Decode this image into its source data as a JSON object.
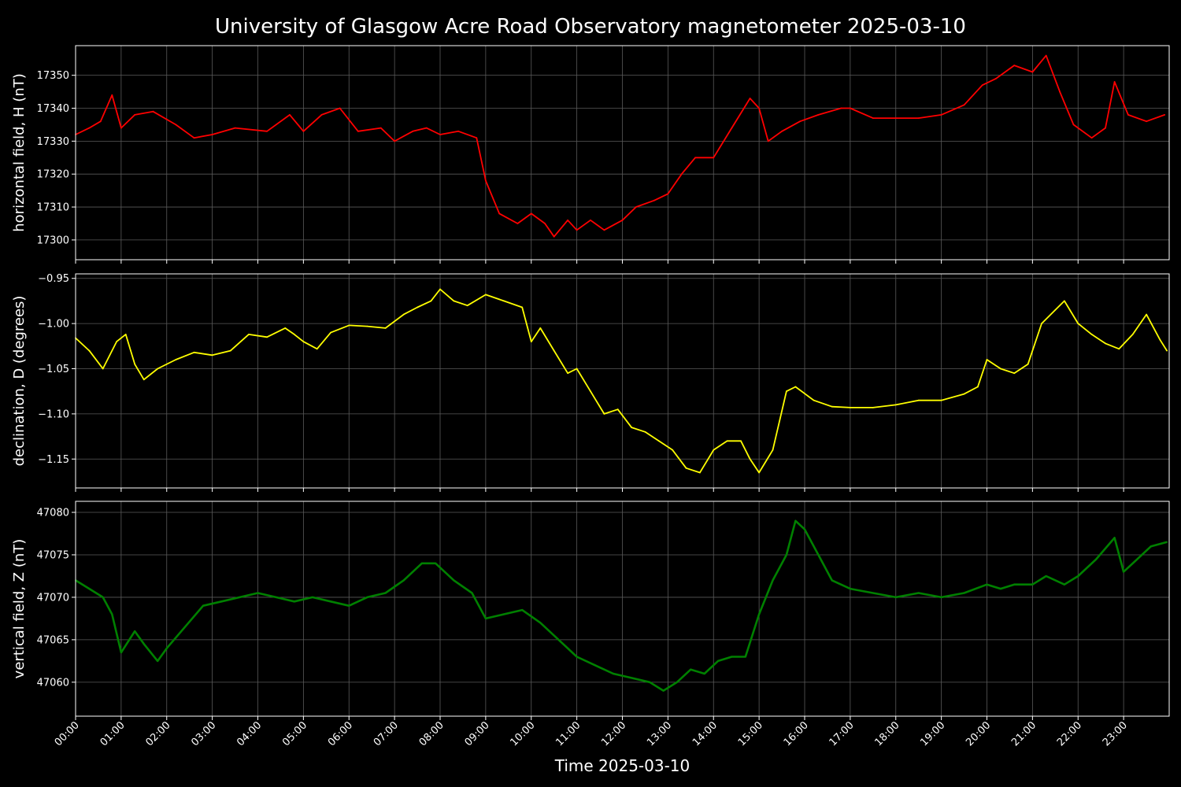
{
  "title": "University of Glasgow Acre Road Observatory magnetometer 2025-03-10",
  "chart_data": [
    {
      "type": "line",
      "ylabel": "horizontal field, H (nT)",
      "xlabel": "",
      "color": "#ff0000",
      "ylim": [
        17294,
        17359
      ],
      "yticks": [
        17300,
        17310,
        17320,
        17330,
        17340,
        17350
      ],
      "ytick_labels": [
        "17300",
        "17310",
        "17320",
        "17330",
        "17340",
        "17350"
      ],
      "grid": true,
      "x_hours": [
        0.0,
        0.3,
        0.55,
        0.8,
        1.0,
        1.3,
        1.7,
        2.2,
        2.6,
        3.0,
        3.5,
        4.2,
        4.7,
        5.0,
        5.4,
        5.8,
        6.2,
        6.7,
        7.0,
        7.4,
        7.7,
        8.0,
        8.4,
        8.8,
        9.0,
        9.3,
        9.7,
        10.0,
        10.3,
        10.5,
        10.8,
        11.0,
        11.3,
        11.6,
        12.0,
        12.3,
        12.7,
        13.0,
        13.3,
        13.6,
        14.0,
        14.4,
        14.8,
        15.0,
        15.2,
        15.5,
        15.9,
        16.3,
        16.8,
        17.0,
        17.5,
        18.0,
        18.5,
        19.0,
        19.5,
        19.9,
        20.2,
        20.6,
        21.0,
        21.3,
        21.6,
        21.9,
        22.3,
        22.6,
        22.8,
        23.1,
        23.5,
        23.9
      ],
      "values": [
        17332,
        17334,
        17336,
        17344,
        17334,
        17338,
        17339,
        17335,
        17331,
        17332,
        17334,
        17333,
        17338,
        17333,
        17338,
        17340,
        17333,
        17334,
        17330,
        17333,
        17334,
        17332,
        17333,
        17331,
        17318,
        17308,
        17305,
        17308,
        17305,
        17301,
        17306,
        17303,
        17306,
        17303,
        17306,
        17310,
        17312,
        17314,
        17320,
        17325,
        17325,
        17334,
        17343,
        17340,
        17330,
        17333,
        17336,
        17338,
        17340,
        17340,
        17337,
        17337,
        17337,
        17338,
        17341,
        17347,
        17349,
        17353,
        17351,
        17356,
        17345,
        17335,
        17331,
        17334,
        17348,
        17338,
        17336,
        17338
      ]
    },
    {
      "type": "line",
      "ylabel": "declination, D (degrees)",
      "xlabel": "",
      "color": "#ffff00",
      "ylim": [
        -1.182,
        -0.945
      ],
      "yticks": [
        -1.15,
        -1.1,
        -1.05,
        -1.0,
        -0.95
      ],
      "ytick_labels": [
        "−1.15",
        "−1.10",
        "−1.05",
        "−1.00",
        "−0.95"
      ],
      "grid": true,
      "x_hours": [
        0.0,
        0.3,
        0.6,
        0.9,
        1.1,
        1.3,
        1.5,
        1.8,
        2.2,
        2.6,
        3.0,
        3.4,
        3.8,
        4.2,
        4.6,
        4.8,
        5.0,
        5.3,
        5.6,
        6.0,
        6.4,
        6.8,
        7.2,
        7.5,
        7.8,
        8.0,
        8.3,
        8.6,
        9.0,
        9.4,
        9.8,
        10.0,
        10.2,
        10.5,
        10.8,
        11.0,
        11.3,
        11.6,
        11.9,
        12.2,
        12.5,
        12.8,
        13.1,
        13.4,
        13.7,
        14.0,
        14.3,
        14.6,
        14.8,
        15.0,
        15.3,
        15.6,
        15.8,
        16.2,
        16.6,
        17.0,
        17.5,
        18.0,
        18.5,
        19.0,
        19.5,
        19.8,
        20.0,
        20.3,
        20.6,
        20.9,
        21.2,
        21.5,
        21.7,
        22.0,
        22.3,
        22.6,
        22.9,
        23.2,
        23.5,
        23.8,
        23.95
      ],
      "values": [
        -1.016,
        -1.03,
        -1.05,
        -1.02,
        -1.012,
        -1.045,
        -1.062,
        -1.05,
        -1.04,
        -1.032,
        -1.035,
        -1.03,
        -1.012,
        -1.015,
        -1.005,
        -1.012,
        -1.02,
        -1.028,
        -1.01,
        -1.002,
        -1.003,
        -1.005,
        -0.99,
        -0.982,
        -0.975,
        -0.962,
        -0.975,
        -0.98,
        -0.968,
        -0.975,
        -0.982,
        -1.02,
        -1.005,
        -1.03,
        -1.055,
        -1.05,
        -1.075,
        -1.1,
        -1.095,
        -1.115,
        -1.12,
        -1.13,
        -1.14,
        -1.16,
        -1.165,
        -1.14,
        -1.13,
        -1.13,
        -1.15,
        -1.165,
        -1.14,
        -1.075,
        -1.07,
        -1.085,
        -1.092,
        -1.093,
        -1.093,
        -1.09,
        -1.085,
        -1.085,
        -1.078,
        -1.07,
        -1.04,
        -1.05,
        -1.055,
        -1.045,
        -1.0,
        -0.985,
        -0.975,
        -1.0,
        -1.012,
        -1.022,
        -1.028,
        -1.012,
        -0.99,
        -1.018,
        -1.03
      ]
    },
    {
      "type": "line",
      "ylabel": "vertical field, Z (nT)",
      "xlabel": "Time 2025-03-10",
      "color": "#008000",
      "ylim": [
        47056,
        47081.3
      ],
      "yticks": [
        47060,
        47065,
        47070,
        47075,
        47080
      ],
      "ytick_labels": [
        "47060",
        "47065",
        "47070",
        "47075",
        "47080"
      ],
      "grid": true,
      "x_hours": [
        0.0,
        0.3,
        0.6,
        0.8,
        1.0,
        1.3,
        1.5,
        1.8,
        2.0,
        2.4,
        2.8,
        3.2,
        3.6,
        4.0,
        4.4,
        4.8,
        5.2,
        5.6,
        6.0,
        6.4,
        6.8,
        7.2,
        7.6,
        7.9,
        8.3,
        8.7,
        9.0,
        9.4,
        9.8,
        10.2,
        10.6,
        11.0,
        11.4,
        11.8,
        12.2,
        12.6,
        12.9,
        13.2,
        13.5,
        13.8,
        14.1,
        14.4,
        14.7,
        15.0,
        15.3,
        15.6,
        15.8,
        16.0,
        16.3,
        16.6,
        17.0,
        17.5,
        18.0,
        18.5,
        19.0,
        19.5,
        20.0,
        20.3,
        20.6,
        21.0,
        21.3,
        21.7,
        22.0,
        22.4,
        22.8,
        23.0,
        23.3,
        23.6,
        23.95
      ],
      "values": [
        47072,
        47071,
        47070,
        47068,
        47063.5,
        47066,
        47064.5,
        47062.5,
        47064,
        47066.5,
        47069,
        47069.5,
        47070,
        47070.5,
        47070,
        47069.5,
        47070,
        47069.5,
        47069,
        47070,
        47070.5,
        47072,
        47074,
        47074,
        47072,
        47070.5,
        47067.5,
        47068,
        47068.5,
        47067,
        47065,
        47063,
        47062,
        47061,
        47060.5,
        47060,
        47059,
        47060,
        47061.5,
        47061,
        47062.5,
        47063,
        47063,
        47068,
        47072,
        47075,
        47079,
        47078,
        47075,
        47072,
        47071,
        47070.5,
        47070,
        47070.5,
        47070,
        47070.5,
        47071.5,
        47071,
        47071.5,
        47071.5,
        47072.5,
        47071.5,
        47072.5,
        47074.5,
        47077,
        47073,
        47074.5,
        47076,
        47076.5
      ]
    }
  ],
  "x_axis": {
    "xlim_hours": [
      0,
      24
    ],
    "tick_labels": [
      "00:00",
      "01:00",
      "02:00",
      "03:00",
      "04:00",
      "05:00",
      "06:00",
      "07:00",
      "08:00",
      "09:00",
      "10:00",
      "11:00",
      "12:00",
      "13:00",
      "14:00",
      "15:00",
      "16:00",
      "17:00",
      "18:00",
      "19:00",
      "20:00",
      "21:00",
      "22:00",
      "23:00"
    ]
  },
  "colors": {
    "background": "#000000",
    "axes": "#ffffff",
    "grid": "#5a5a5a"
  }
}
